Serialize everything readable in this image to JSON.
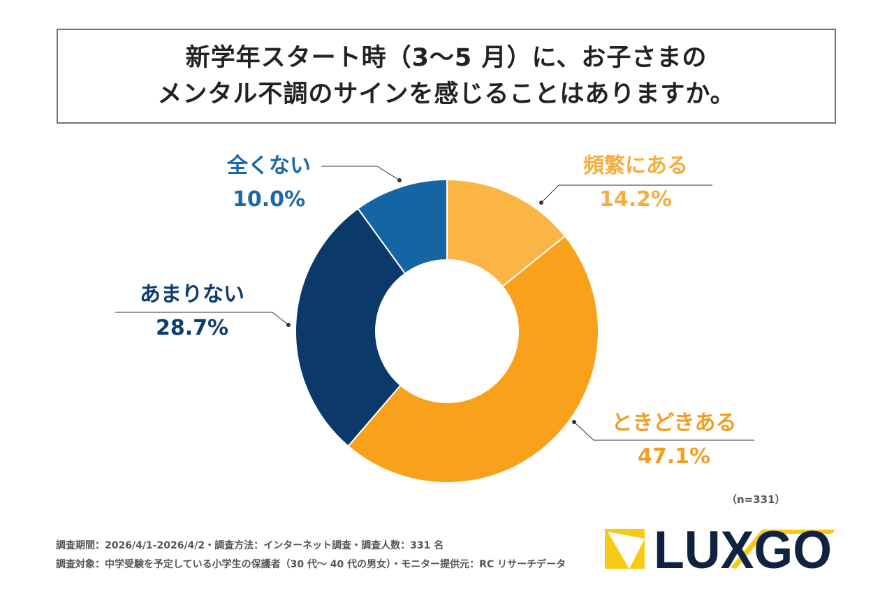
{
  "title": {
    "line1": "新学年スタート時（3〜5 月）に、お子さまの",
    "line2": "メンタル不調のサインを感じることはありますか。"
  },
  "chart_data": {
    "type": "pie",
    "donut": true,
    "start": "top",
    "direction": "clockwise",
    "slices": [
      {
        "label": "頻繁にある",
        "value": 14.2,
        "display": "14.2%",
        "color": "#FBB545",
        "text_color": "#F5AE3E"
      },
      {
        "label": "ときどきある",
        "value": 47.1,
        "display": "47.1%",
        "color": "#F9A11B",
        "text_color": "#F0A020"
      },
      {
        "label": "あまりない",
        "value": 28.7,
        "display": "28.7%",
        "color": "#0B3A6A",
        "text_color": "#0D3C6E"
      },
      {
        "label": "全くない",
        "value": 10.0,
        "display": "10.0%",
        "color": "#1565A5",
        "text_color": "#1A68A8"
      }
    ]
  },
  "sample_note": "（n=331）",
  "footer": {
    "line1": "調査期間：2026/4/1-2026/4/2・調査方法：インターネット調査・調査人数：331 名",
    "line2": "調査対象：中学受験を予定している小学生の保護者（30 代〜 40 代の男女）・モニター提供元：RC リサーチデータ"
  },
  "logo": {
    "text": "LUXGO",
    "colors": {
      "text": "#0F2340",
      "accent": "#F7CB15"
    }
  }
}
